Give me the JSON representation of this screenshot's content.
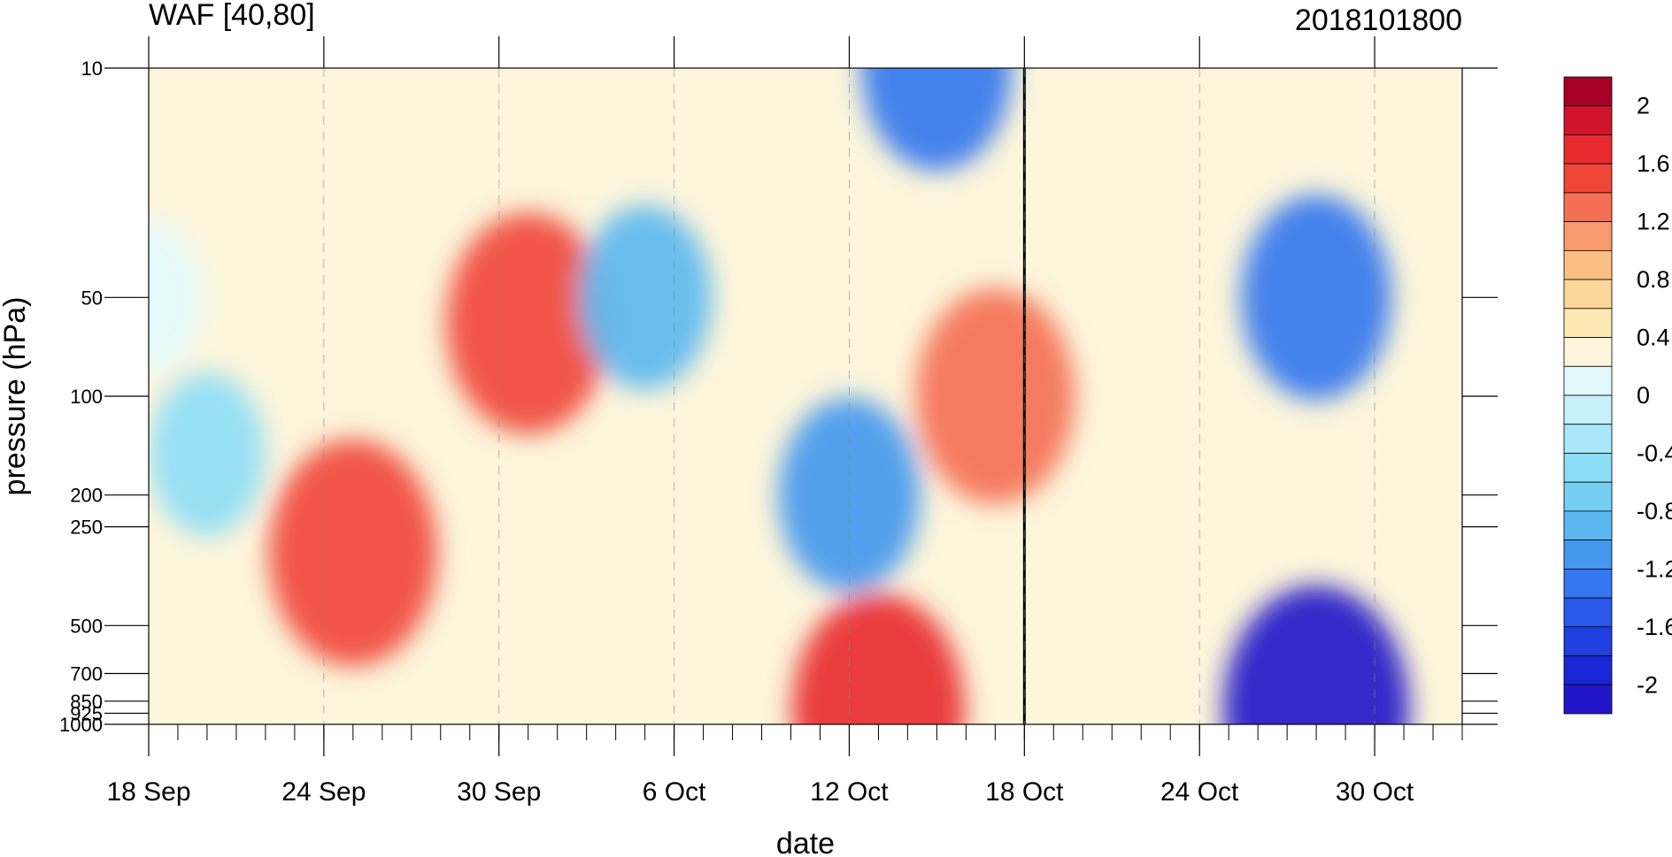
{
  "chart_data": {
    "type": "heatmap",
    "title": "WAF [40,80]",
    "title_right": "2018101800",
    "xlabel": "date",
    "ylabel": "pressure (hPa)",
    "x_ticks": [
      "18 Sep",
      "24 Sep",
      "30 Sep",
      "6 Oct",
      "12 Oct",
      "18 Oct",
      "24 Oct",
      "30 Oct"
    ],
    "x_tick_days": [
      0,
      6,
      12,
      18,
      24,
      30,
      36,
      42
    ],
    "xlim_days_from_18_Sep": [
      0,
      45
    ],
    "y_ticks": [
      "10",
      "50",
      "100",
      "200",
      "250",
      "500",
      "700",
      "850",
      "925",
      "1000"
    ],
    "y_tick_values": [
      10,
      50,
      100,
      200,
      250,
      500,
      700,
      850,
      925,
      1000
    ],
    "y_scale": "log",
    "ylim": [
      1000,
      10
    ],
    "vertical_marker": "18 Oct",
    "colorbar": {
      "labels": [
        "2",
        "1.6",
        "1.2",
        "0.8",
        "0.4",
        "0",
        "-0.4",
        "-0.8",
        "-1.2",
        "-1.6",
        "-2"
      ],
      "colors": [
        "#a50026",
        "#d0152a",
        "#e82a2f",
        "#f0463a",
        "#f47055",
        "#f89a6e",
        "#fbbf84",
        "#fcd79a",
        "#fce9b4",
        "#fdf6dc",
        "#e2f9fc",
        "#c6f1fb",
        "#a9e8f9",
        "#8dddf6",
        "#74cff2",
        "#5cb8f0",
        "#4598ee",
        "#3577ee",
        "#2a58ea",
        "#2040e0",
        "#1a27d6",
        "#2316c8"
      ]
    },
    "samples": [
      {
        "date": "18 Sep",
        "p": 50,
        "v": 0.2
      },
      {
        "date": "20 Sep",
        "p": 150,
        "v": -0.4
      },
      {
        "date": "25 Sep",
        "p": 300,
        "v": 1.6
      },
      {
        "date": "1 Oct",
        "p": 60,
        "v": 1.5
      },
      {
        "date": "5 Oct",
        "p": 50,
        "v": -0.8
      },
      {
        "date": "12 Oct",
        "p": 200,
        "v": -1.0
      },
      {
        "date": "13 Oct",
        "p": 900,
        "v": 1.7
      },
      {
        "date": "17 Oct",
        "p": 100,
        "v": 1.4
      },
      {
        "date": "15 Oct",
        "p": 10,
        "v": -1.2
      },
      {
        "date": "28 Oct",
        "p": 50,
        "v": -1.2
      },
      {
        "date": "28 Oct",
        "p": 900,
        "v": -2.0
      }
    ]
  }
}
